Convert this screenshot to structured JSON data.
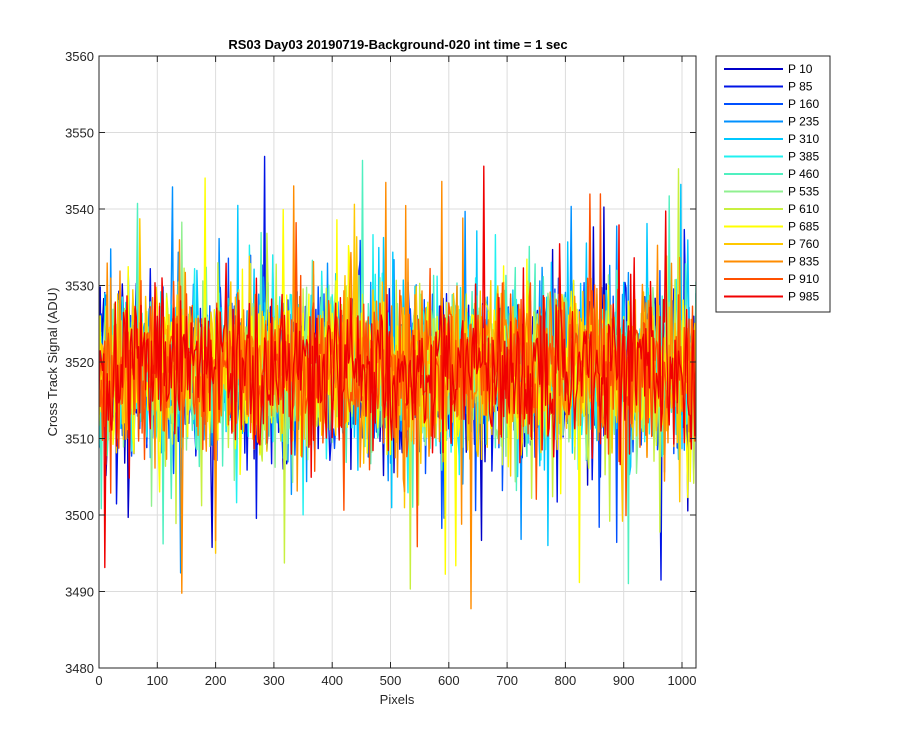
{
  "chart_data": {
    "type": "line",
    "title": "RS03 Day03 20190719-Background-020 int time = 1 sec",
    "xlabel": "Pixels",
    "ylabel": "Cross Track Signal (ADU)",
    "xlim": [
      0,
      1024
    ],
    "ylim": [
      3480,
      3560
    ],
    "x_ticks": [
      0,
      100,
      200,
      300,
      400,
      500,
      600,
      700,
      800,
      900,
      1000
    ],
    "y_ticks": [
      3480,
      3490,
      3500,
      3510,
      3520,
      3530,
      3540,
      3550,
      3560
    ],
    "grid": true,
    "legend_position": "outside-top-right",
    "signal_center": 3519,
    "typical_range": [
      3500,
      3540
    ],
    "observed_extremes": [
      3486,
      3554
    ],
    "series": [
      {
        "name": "P 10",
        "color": "#0000c8"
      },
      {
        "name": "P 85",
        "color": "#0014e6"
      },
      {
        "name": "P 160",
        "color": "#0050ff"
      },
      {
        "name": "P 235",
        "color": "#0090ff"
      },
      {
        "name": "P 310",
        "color": "#00c8ff"
      },
      {
        "name": "P 385",
        "color": "#20f0f0"
      },
      {
        "name": "P 460",
        "color": "#50f0c0"
      },
      {
        "name": "P 535",
        "color": "#90f090"
      },
      {
        "name": "P 610",
        "color": "#c8f040"
      },
      {
        "name": "P 685",
        "color": "#ffff00"
      },
      {
        "name": "P 760",
        "color": "#ffc800"
      },
      {
        "name": "P 835",
        "color": "#ff8c00"
      },
      {
        "name": "P 910",
        "color": "#ff5000"
      },
      {
        "name": "P 985",
        "color": "#f00000"
      }
    ]
  }
}
